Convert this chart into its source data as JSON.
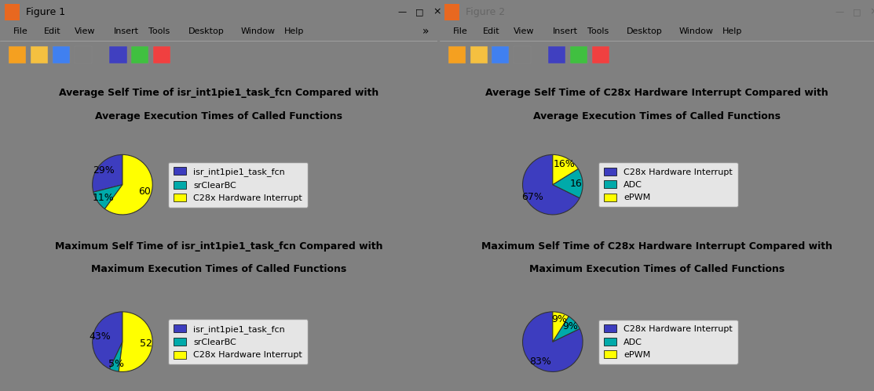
{
  "fig1": {
    "top": {
      "title_line1": "Average Self Time of isr_int1pie1_task_fcn Compared with",
      "title_line2": "Average Execution Times of Called Functions",
      "sizes": [
        29,
        11,
        60
      ],
      "labels": [
        "isr_int1pie1_task_fcn",
        "srClearBC",
        "C28x Hardware Interrupt"
      ],
      "colors": [
        "#3D3DBF",
        "#00AAAA",
        "#FFFF00"
      ],
      "autopct_labels": [
        "29%",
        "11%",
        "60"
      ],
      "startangle": 90
    },
    "bottom": {
      "title_line1": "Maximum Self Time of isr_int1pie1_task_fcn Compared with",
      "title_line2": "Maximum Execution Times of Called Functions",
      "sizes": [
        43,
        5,
        52
      ],
      "labels": [
        "isr_int1pie1_task_fcn",
        "srClearBC",
        "C28x Hardware Interrupt"
      ],
      "colors": [
        "#3D3DBF",
        "#00AAAA",
        "#FFFF00"
      ],
      "autopct_labels": [
        "43%",
        "5%",
        "52"
      ],
      "startangle": 90
    }
  },
  "fig2": {
    "top": {
      "title_line1": "Average Self Time of C28x Hardware Interrupt Compared with",
      "title_line2": "Average Execution Times of Called Functions",
      "sizes": [
        67,
        16,
        16
      ],
      "labels": [
        "C28x Hardware Interrupt",
        "ADC",
        "ePWM"
      ],
      "colors": [
        "#3D3DBF",
        "#00AAAA",
        "#FFFF00"
      ],
      "autopct_labels": [
        "67%",
        "16",
        "16%"
      ],
      "startangle": 90
    },
    "bottom": {
      "title_line1": "Maximum Self Time of C28x Hardware Interrupt Compared with",
      "title_line2": "Maximum Execution Times of Called Functions",
      "sizes": [
        83,
        9,
        9
      ],
      "labels": [
        "C28x Hardware Interrupt",
        "ADC",
        "ePWM"
      ],
      "colors": [
        "#3D3DBF",
        "#00AAAA",
        "#FFFF00"
      ],
      "autopct_labels": [
        "83%",
        "9%",
        "9%"
      ],
      "startangle": 90
    }
  },
  "bg_color": "#D4D0C8",
  "plot_bg": "#D9D9D9",
  "legend_bg": "#FFFFFF",
  "title_bar_color": "#FFFFFF",
  "menu_bar_color": "#F0F0F0",
  "toolbar_color": "#E8E8E8",
  "window_border": "#AAAAAA",
  "title_fontsize": 9,
  "legend_fontsize": 8,
  "win1_title": "Figure 1",
  "win2_title": "Figure 2",
  "menu_items": [
    "File",
    "Edit",
    "View",
    "Insert",
    "Tools",
    "Desktop",
    "Window",
    "Help"
  ]
}
